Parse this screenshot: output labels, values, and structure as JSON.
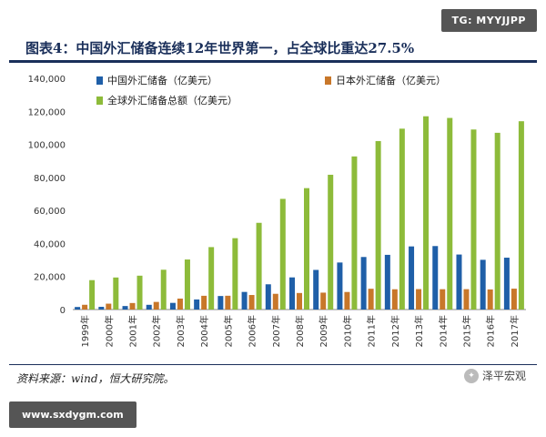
{
  "watermark_top": "TG: MYYJJPP",
  "watermark_bottom": "www.sxdygm.com",
  "source": "资料来源：wind，恒大研究院。",
  "logo_text": "泽平宏观",
  "colors": {
    "china": "#1f5fa8",
    "japan": "#c8772a",
    "global": "#8dbb3a",
    "title": "#1a2f5a"
  },
  "chart_data": {
    "type": "bar",
    "title": "图表4：中国外汇储备连续12年世界第一，占全球比重达27.5%",
    "categories": [
      "1999年",
      "2000年",
      "2001年",
      "2002年",
      "2003年",
      "2004年",
      "2005年",
      "2006年",
      "2007年",
      "2008年",
      "2009年",
      "2010年",
      "2011年",
      "2012年",
      "2013年",
      "2014年",
      "2015年",
      "2016年",
      "2017年"
    ],
    "ylim": [
      0,
      140000
    ],
    "yticks": [
      "0",
      "20,000",
      "40,000",
      "60,000",
      "80,000",
      "100,000",
      "120,000",
      "140,000"
    ],
    "legend_position": "top-left",
    "series": [
      {
        "name": "中国外汇储备（亿美元）",
        "color": "#1f5fa8",
        "values": [
          1547,
          1656,
          2122,
          2864,
          4033,
          6099,
          8189,
          10663,
          15282,
          19460,
          23992,
          28473,
          31811,
          33116,
          38213,
          38430,
          33304,
          30105,
          31399
        ]
      },
      {
        "name": "日本外汇储备（亿美元）",
        "color": "#c8772a",
        "values": [
          2880,
          3550,
          3950,
          4610,
          6630,
          8330,
          8350,
          8800,
          9520,
          10010,
          10230,
          10630,
          12580,
          12270,
          12370,
          12310,
          12330,
          12170,
          12640
        ]
      },
      {
        "name": "全球外汇储备总额（亿美元）",
        "color": "#8dbb3a",
        "values": [
          17800,
          19400,
          20500,
          24100,
          30300,
          37800,
          43200,
          52500,
          67000,
          73500,
          81600,
          92700,
          102000,
          109500,
          117000,
          116000,
          109000,
          107000,
          114000
        ]
      }
    ]
  }
}
